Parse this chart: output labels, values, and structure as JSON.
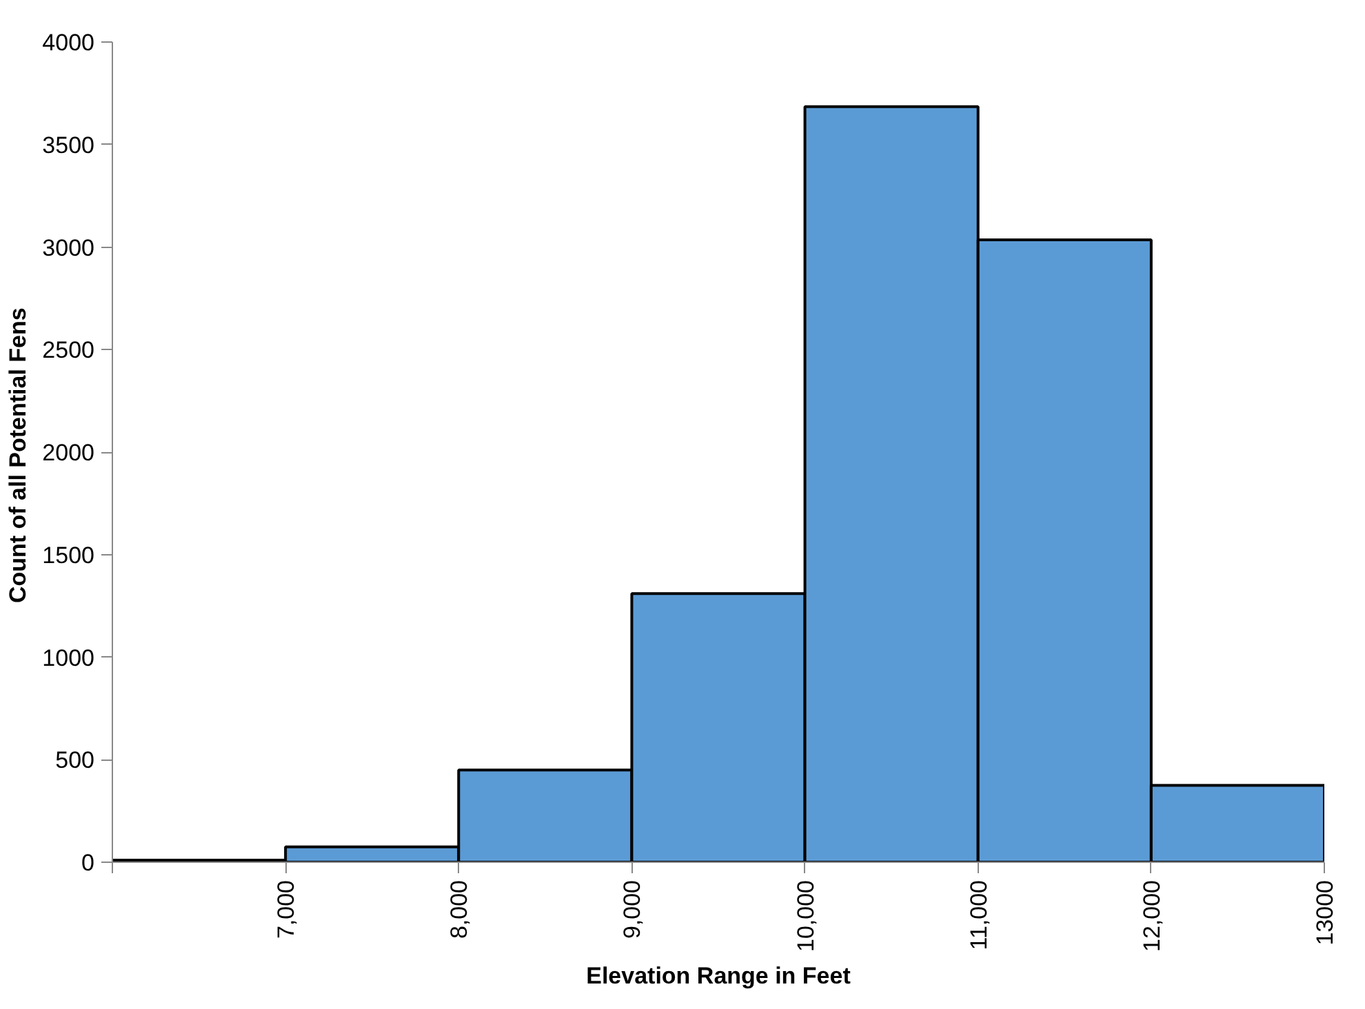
{
  "chart_data": {
    "type": "histogram",
    "xlabel": "Elevation Range in Feet",
    "ylabel": "Count of  all Potential Fens",
    "bins": [
      6000,
      7000,
      8000,
      9000,
      10000,
      11000,
      12000,
      13000
    ],
    "values": [
      10,
      75,
      450,
      1310,
      3685,
      3035,
      375
    ],
    "color": "#5b9bd5",
    "xlim": [
      6000,
      13000
    ],
    "xticks": [
      {
        "value": 6000,
        "label": null
      },
      {
        "value": 7000,
        "label": "7,000"
      },
      {
        "value": 8000,
        "label": "8,000"
      },
      {
        "value": 9000,
        "label": "9,000"
      },
      {
        "value": 10000,
        "label": "10,000"
      },
      {
        "value": 11000,
        "label": "11,000"
      },
      {
        "value": 12000,
        "label": "12,000"
      },
      13000
    ],
    "ylim": [
      0,
      4000
    ],
    "yticks": [
      0,
      500,
      1000,
      1500,
      2000,
      2500,
      3000,
      3500,
      4000
    ],
    "grid": false
  }
}
